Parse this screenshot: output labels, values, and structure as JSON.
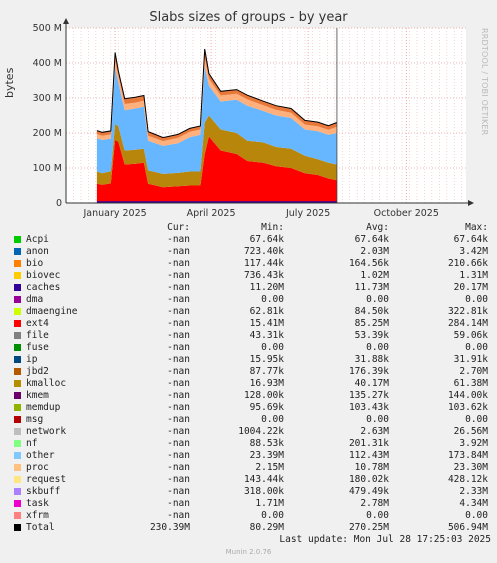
{
  "chart_data": {
    "type": "area",
    "title": "Slabs sizes of groups - by year",
    "ylabel": "bytes",
    "ylim": [
      0,
      500
    ],
    "y_unit": "M",
    "y_ticks": [
      "0",
      "100 M",
      "200 M",
      "300 M",
      "400 M",
      "500 M"
    ],
    "x_ticks": [
      "January 2025",
      "April 2025",
      "July 2025",
      "October 2025"
    ],
    "grid": true,
    "stack_order": [
      "ext4",
      "kmalloc",
      "other",
      "proc",
      "bio"
    ],
    "series": [
      {
        "name": "ext4",
        "color": "#ff0000"
      },
      {
        "name": "kmalloc",
        "color": "#b8860b"
      },
      {
        "name": "other",
        "color": "#66b7ff"
      },
      {
        "name": "proc",
        "color": "#ffb07c"
      },
      {
        "name": "bio",
        "color": "#e8773a"
      }
    ],
    "points": [
      {
        "t": "2024-12-15",
        "ext4": 55,
        "kmalloc": 35,
        "other": 95,
        "proc": 12,
        "bio": 10
      },
      {
        "t": "2024-12-20",
        "ext4": 52,
        "kmalloc": 33,
        "other": 95,
        "proc": 12,
        "bio": 10
      },
      {
        "t": "2024-12-28",
        "ext4": 56,
        "kmalloc": 35,
        "other": 93,
        "proc": 12,
        "bio": 10
      },
      {
        "t": "2025-01-01",
        "ext4": 180,
        "kmalloc": 45,
        "other": 160,
        "proc": 20,
        "bio": 25
      },
      {
        "t": "2025-01-04",
        "ext4": 175,
        "kmalloc": 45,
        "other": 125,
        "proc": 18,
        "bio": 15
      },
      {
        "t": "2025-01-10",
        "ext4": 110,
        "kmalloc": 40,
        "other": 115,
        "proc": 18,
        "bio": 15
      },
      {
        "t": "2025-01-20",
        "ext4": 112,
        "kmalloc": 40,
        "other": 118,
        "proc": 17,
        "bio": 15
      },
      {
        "t": "2025-01-28",
        "ext4": 115,
        "kmalloc": 40,
        "other": 120,
        "proc": 17,
        "bio": 15
      },
      {
        "t": "2025-02-01",
        "ext4": 55,
        "kmalloc": 38,
        "other": 85,
        "proc": 14,
        "bio": 12
      },
      {
        "t": "2025-02-15",
        "ext4": 45,
        "kmalloc": 38,
        "other": 80,
        "proc": 14,
        "bio": 10
      },
      {
        "t": "2025-03-01",
        "ext4": 48,
        "kmalloc": 38,
        "other": 85,
        "proc": 15,
        "bio": 10
      },
      {
        "t": "2025-03-12",
        "ext4": 50,
        "kmalloc": 40,
        "other": 98,
        "proc": 15,
        "bio": 10
      },
      {
        "t": "2025-03-22",
        "ext4": 50,
        "kmalloc": 40,
        "other": 105,
        "proc": 15,
        "bio": 10
      },
      {
        "t": "2025-03-26",
        "ext4": 140,
        "kmalloc": 90,
        "other": 160,
        "proc": 25,
        "bio": 25
      },
      {
        "t": "2025-03-30",
        "ext4": 190,
        "kmalloc": 60,
        "other": 85,
        "proc": 20,
        "bio": 15
      },
      {
        "t": "2025-04-10",
        "ext4": 150,
        "kmalloc": 60,
        "other": 80,
        "proc": 17,
        "bio": 12
      },
      {
        "t": "2025-04-25",
        "ext4": 140,
        "kmalloc": 60,
        "other": 95,
        "proc": 17,
        "bio": 12
      },
      {
        "t": "2025-05-05",
        "ext4": 120,
        "kmalloc": 58,
        "other": 100,
        "proc": 18,
        "bio": 12
      },
      {
        "t": "2025-05-20",
        "ext4": 115,
        "kmalloc": 58,
        "other": 90,
        "proc": 16,
        "bio": 12
      },
      {
        "t": "2025-06-01",
        "ext4": 105,
        "kmalloc": 55,
        "other": 90,
        "proc": 16,
        "bio": 12
      },
      {
        "t": "2025-06-15",
        "ext4": 100,
        "kmalloc": 55,
        "other": 88,
        "proc": 15,
        "bio": 12
      },
      {
        "t": "2025-06-28",
        "ext4": 85,
        "kmalloc": 50,
        "other": 75,
        "proc": 14,
        "bio": 12
      },
      {
        "t": "2025-07-10",
        "ext4": 80,
        "kmalloc": 45,
        "other": 80,
        "proc": 14,
        "bio": 12
      },
      {
        "t": "2025-07-20",
        "ext4": 70,
        "kmalloc": 45,
        "other": 80,
        "proc": 14,
        "bio": 12
      },
      {
        "t": "2025-07-28",
        "ext4": 65,
        "kmalloc": 45,
        "other": 90,
        "proc": 18,
        "bio": 12
      }
    ],
    "x_start": "2024-11-16",
    "x_end": "2025-11-26"
  },
  "watermark": "RRDTOOL / TOBI OETIKER",
  "legend": {
    "headers": {
      "cur": "Cur:",
      "min": "Min:",
      "avg": "Avg:",
      "max": "Max:"
    },
    "rows": [
      {
        "name": "Acpi",
        "color": "#00cc00",
        "cur": "-nan",
        "min": "67.64k",
        "avg": "67.64k",
        "max": "67.64k"
      },
      {
        "name": "anon",
        "color": "#0066b3",
        "cur": "-nan",
        "min": "723.40k",
        "avg": "2.03M",
        "max": "3.42M"
      },
      {
        "name": "bio",
        "color": "#ff8000",
        "cur": "-nan",
        "min": "117.44k",
        "avg": "164.56k",
        "max": "210.66k"
      },
      {
        "name": "biovec",
        "color": "#ffcc00",
        "cur": "-nan",
        "min": "736.43k",
        "avg": "1.02M",
        "max": "1.31M"
      },
      {
        "name": "caches",
        "color": "#330099",
        "cur": "-nan",
        "min": "11.20M",
        "avg": "11.73M",
        "max": "20.17M"
      },
      {
        "name": "dma",
        "color": "#990099",
        "cur": "-nan",
        "min": "0.00",
        "avg": "0.00",
        "max": "0.00"
      },
      {
        "name": "dmaengine",
        "color": "#ccff00",
        "cur": "-nan",
        "min": "62.81k",
        "avg": "84.50k",
        "max": "322.81k"
      },
      {
        "name": "ext4",
        "color": "#ff0000",
        "cur": "-nan",
        "min": "15.41M",
        "avg": "85.25M",
        "max": "284.14M"
      },
      {
        "name": "file",
        "color": "#808080",
        "cur": "-nan",
        "min": "43.31k",
        "avg": "53.39k",
        "max": "59.06k"
      },
      {
        "name": "fuse",
        "color": "#008f00",
        "cur": "-nan",
        "min": "0.00",
        "avg": "0.00",
        "max": "0.00"
      },
      {
        "name": "ip",
        "color": "#00487d",
        "cur": "-nan",
        "min": "15.95k",
        "avg": "31.88k",
        "max": "31.91k"
      },
      {
        "name": "jbd2",
        "color": "#b35a00",
        "cur": "-nan",
        "min": "87.77k",
        "avg": "176.39k",
        "max": "2.70M"
      },
      {
        "name": "kmalloc",
        "color": "#b38f00",
        "cur": "-nan",
        "min": "16.93M",
        "avg": "40.17M",
        "max": "61.38M"
      },
      {
        "name": "kmem",
        "color": "#6b006b",
        "cur": "-nan",
        "min": "128.00k",
        "avg": "135.27k",
        "max": "144.00k"
      },
      {
        "name": "memdup",
        "color": "#8fb300",
        "cur": "-nan",
        "min": "95.69k",
        "avg": "103.43k",
        "max": "103.62k"
      },
      {
        "name": "msg",
        "color": "#b30000",
        "cur": "-nan",
        "min": "0.00",
        "avg": "0.00",
        "max": "0.00"
      },
      {
        "name": "network",
        "color": "#bebebe",
        "cur": "-nan",
        "min": "1004.22k",
        "avg": "2.63M",
        "max": "26.56M"
      },
      {
        "name": "nf",
        "color": "#80ff80",
        "cur": "-nan",
        "min": "88.53k",
        "avg": "201.31k",
        "max": "3.92M"
      },
      {
        "name": "other",
        "color": "#80c9ff",
        "cur": "-nan",
        "min": "23.39M",
        "avg": "112.43M",
        "max": "173.84M"
      },
      {
        "name": "proc",
        "color": "#ffc080",
        "cur": "-nan",
        "min": "2.15M",
        "avg": "10.78M",
        "max": "23.30M"
      },
      {
        "name": "request",
        "color": "#ffe680",
        "cur": "-nan",
        "min": "143.44k",
        "avg": "180.02k",
        "max": "428.12k"
      },
      {
        "name": "skbuff",
        "color": "#aa80ff",
        "cur": "-nan",
        "min": "318.00k",
        "avg": "479.49k",
        "max": "2.33M"
      },
      {
        "name": "task",
        "color": "#ee00cc",
        "cur": "-nan",
        "min": "1.71M",
        "avg": "2.78M",
        "max": "4.34M"
      },
      {
        "name": "xfrm",
        "color": "#ff8080",
        "cur": "-nan",
        "min": "0.00",
        "avg": "0.00",
        "max": "0.00"
      },
      {
        "name": "Total",
        "color": "#000000",
        "cur": "230.39M",
        "min": "80.29M",
        "avg": "270.25M",
        "max": "506.94M"
      }
    ]
  },
  "last_update": "Last update: Mon Jul 28 17:25:03 2025",
  "munin_version": "Munin 2.0.76"
}
